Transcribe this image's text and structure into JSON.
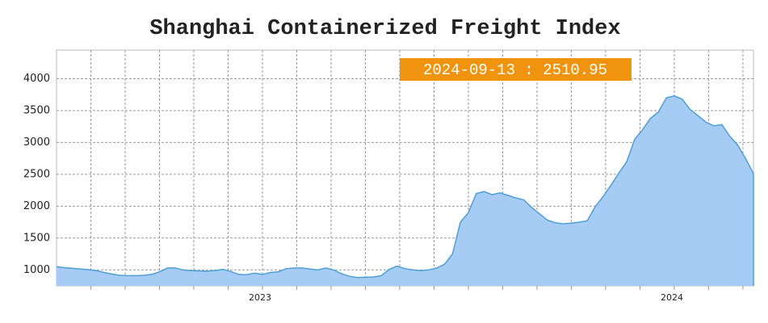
{
  "chart_data": {
    "type": "area",
    "title": "Shanghai Containerized Freight Index",
    "annotation": "2024-09-13 : 2510.95",
    "values": [
      1050,
      1035,
      1025,
      1015,
      1005,
      990,
      960,
      935,
      915,
      910,
      910,
      915,
      930,
      970,
      1030,
      1030,
      1000,
      990,
      985,
      980,
      990,
      1010,
      975,
      930,
      925,
      950,
      930,
      960,
      970,
      1020,
      1030,
      1030,
      1015,
      1000,
      1030,
      1000,
      940,
      900,
      880,
      885,
      890,
      910,
      1010,
      1060,
      1020,
      1000,
      990,
      1000,
      1030,
      1090,
      1250,
      1750,
      1900,
      2200,
      2230,
      2180,
      2210,
      2170,
      2130,
      2100,
      1980,
      1880,
      1780,
      1740,
      1725,
      1735,
      1750,
      1770,
      1990,
      2150,
      2330,
      2520,
      2700,
      3050,
      3200,
      3380,
      3480,
      3700,
      3730,
      3680,
      3520,
      3420,
      3320,
      3260,
      3280,
      3100,
      2960,
      2750,
      2510.95
    ],
    "color": "#a6cbf4",
    "line_color": "#4e9fd4",
    "xlim": [
      0,
      88
    ],
    "xticks": [
      {
        "value": 25.7,
        "label": "2023"
      },
      {
        "value": 77.7,
        "label": "2024"
      }
    ],
    "xgrid": [
      4.33,
      8.67,
      13,
      17.33,
      21.67,
      26,
      30.33,
      34.67,
      39,
      43.33,
      47.67,
      52,
      56.33,
      60.67,
      65,
      69.33,
      73.67,
      78,
      82.33,
      86.67
    ],
    "ylim": [
      750,
      4450
    ],
    "yticks": [
      1000,
      1500,
      2000,
      2500,
      3000,
      3500,
      4000
    ],
    "grid": true
  }
}
